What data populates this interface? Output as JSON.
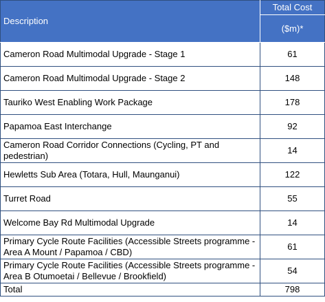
{
  "table": {
    "header": {
      "description": "Description",
      "total_cost": "Total Cost",
      "unit": "($m)*"
    },
    "rows": [
      [
        "Cameron Road Multimodal Upgrade - Stage 1",
        61
      ],
      [
        "Cameron Road Multimodal Upgrade - Stage 2",
        148
      ],
      [
        "Tauriko West Enabling Work Package",
        178
      ],
      [
        "Papamoa East Interchange",
        92
      ],
      [
        "Cameron Road Corridor Connections (Cycling, PT and pedestrian)",
        14
      ],
      [
        "Hewletts Sub Area (Totara, Hull, Maunganui)",
        122
      ],
      [
        "Turret Road",
        55
      ],
      [
        "Welcome Bay Rd Multimodal Upgrade",
        14
      ],
      [
        "Primary Cycle Route Facilities (Accessible Streets programme - Area A Mount / Papamoa / CBD)",
        61
      ],
      [
        "Primary Cycle Route Facilities (Accessible Streets programme - Area B Otumoetai / Bellevue / Brookfield)",
        54
      ]
    ],
    "total": [
      "Total",
      798
    ]
  }
}
